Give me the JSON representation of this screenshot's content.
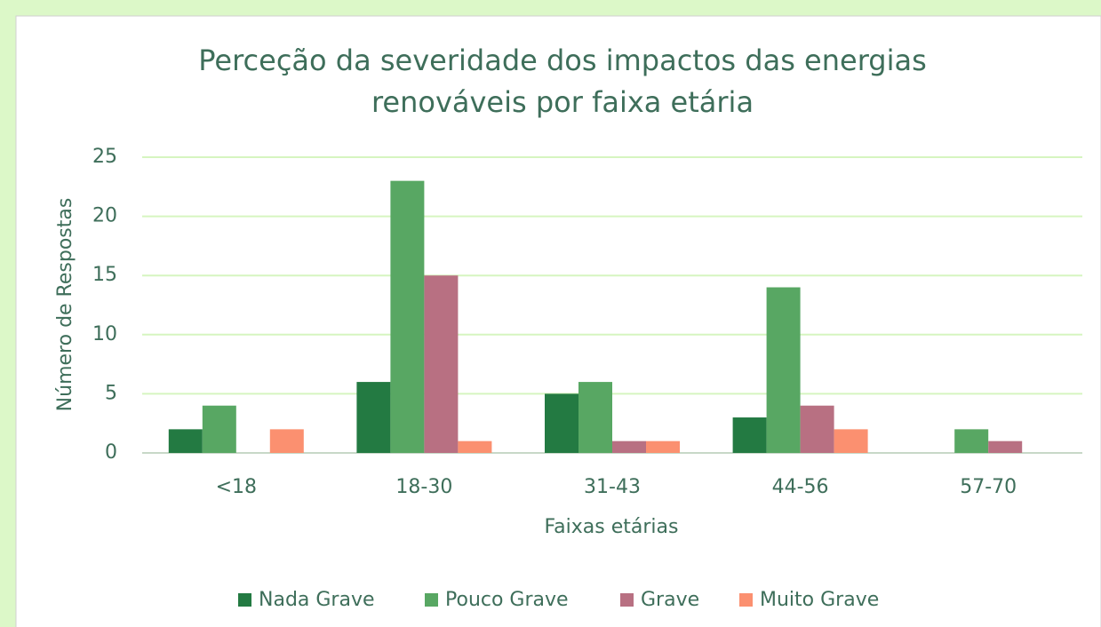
{
  "chart_data": {
    "type": "bar",
    "title": [
      "Perceção da severidade dos impactos das energias",
      "renováveis por faixa etária"
    ],
    "x_label": "Faixas etárias",
    "y_label": "Número de Respostas",
    "categories": [
      "<18",
      "18-30",
      "31-43",
      "44-56",
      "57-70"
    ],
    "series": [
      {
        "name": "Nada Grave",
        "color": "#237a42",
        "values": [
          2,
          6,
          5,
          3,
          0
        ]
      },
      {
        "name": "Pouco Grave",
        "color": "#58a763",
        "values": [
          4,
          23,
          6,
          14,
          2
        ]
      },
      {
        "name": "Grave",
        "color": "#b87082",
        "values": [
          0,
          15,
          1,
          4,
          1
        ]
      },
      {
        "name": "Muito Grave",
        "color": "#fb9070",
        "values": [
          2,
          1,
          1,
          2,
          0
        ]
      }
    ],
    "ylim": [
      0,
      25
    ],
    "yticks": [
      0,
      5,
      10,
      15,
      20,
      25
    ],
    "grid": true,
    "legend": "bottom"
  }
}
